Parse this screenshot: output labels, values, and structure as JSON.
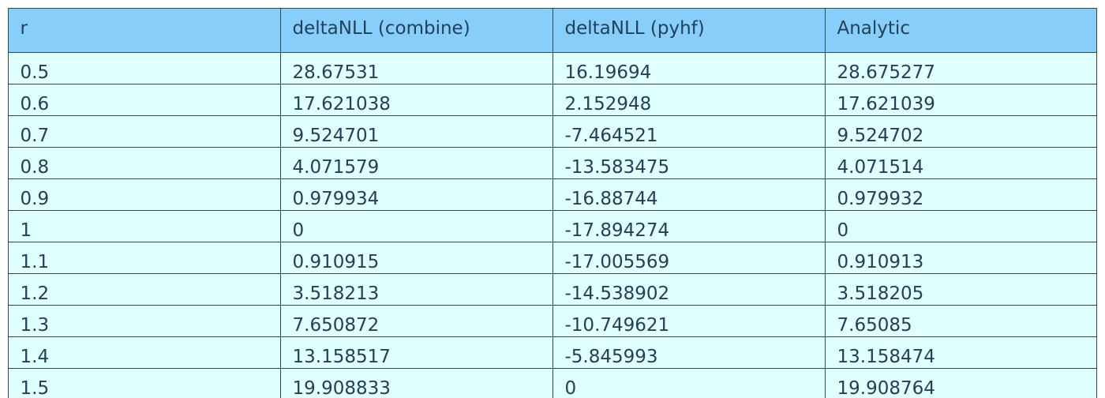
{
  "chart_data": {
    "type": "table",
    "columns": [
      "r",
      "deltaNLL (combine)",
      "deltaNLL (pyhf)",
      "Analytic"
    ],
    "rows": [
      [
        "0.5",
        "28.67531",
        "16.19694",
        "28.675277"
      ],
      [
        "0.6",
        "17.621038",
        "2.152948",
        "17.621039"
      ],
      [
        "0.7",
        "9.524701",
        "-7.464521",
        "9.524702"
      ],
      [
        "0.8",
        "4.071579",
        "-13.583475",
        "4.071514"
      ],
      [
        "0.9",
        "0.979934",
        "-16.88744",
        "0.979932"
      ],
      [
        "1",
        "0",
        "-17.894274",
        "0"
      ],
      [
        "1.1",
        "0.910915",
        "-17.005569",
        "0.910913"
      ],
      [
        "1.2",
        "3.518213",
        "-14.538902",
        "3.518205"
      ],
      [
        "1.3",
        "7.650872",
        "-10.749621",
        "7.65085"
      ],
      [
        "1.4",
        "13.158517",
        "-5.845993",
        "13.158474"
      ],
      [
        "1.5",
        "19.908833",
        "0",
        "19.908764"
      ]
    ],
    "colors": {
      "header_fill": "#87cefa",
      "cell_fill": "#e0ffff",
      "border": "#2f4f4f",
      "text": "#23405a"
    }
  }
}
